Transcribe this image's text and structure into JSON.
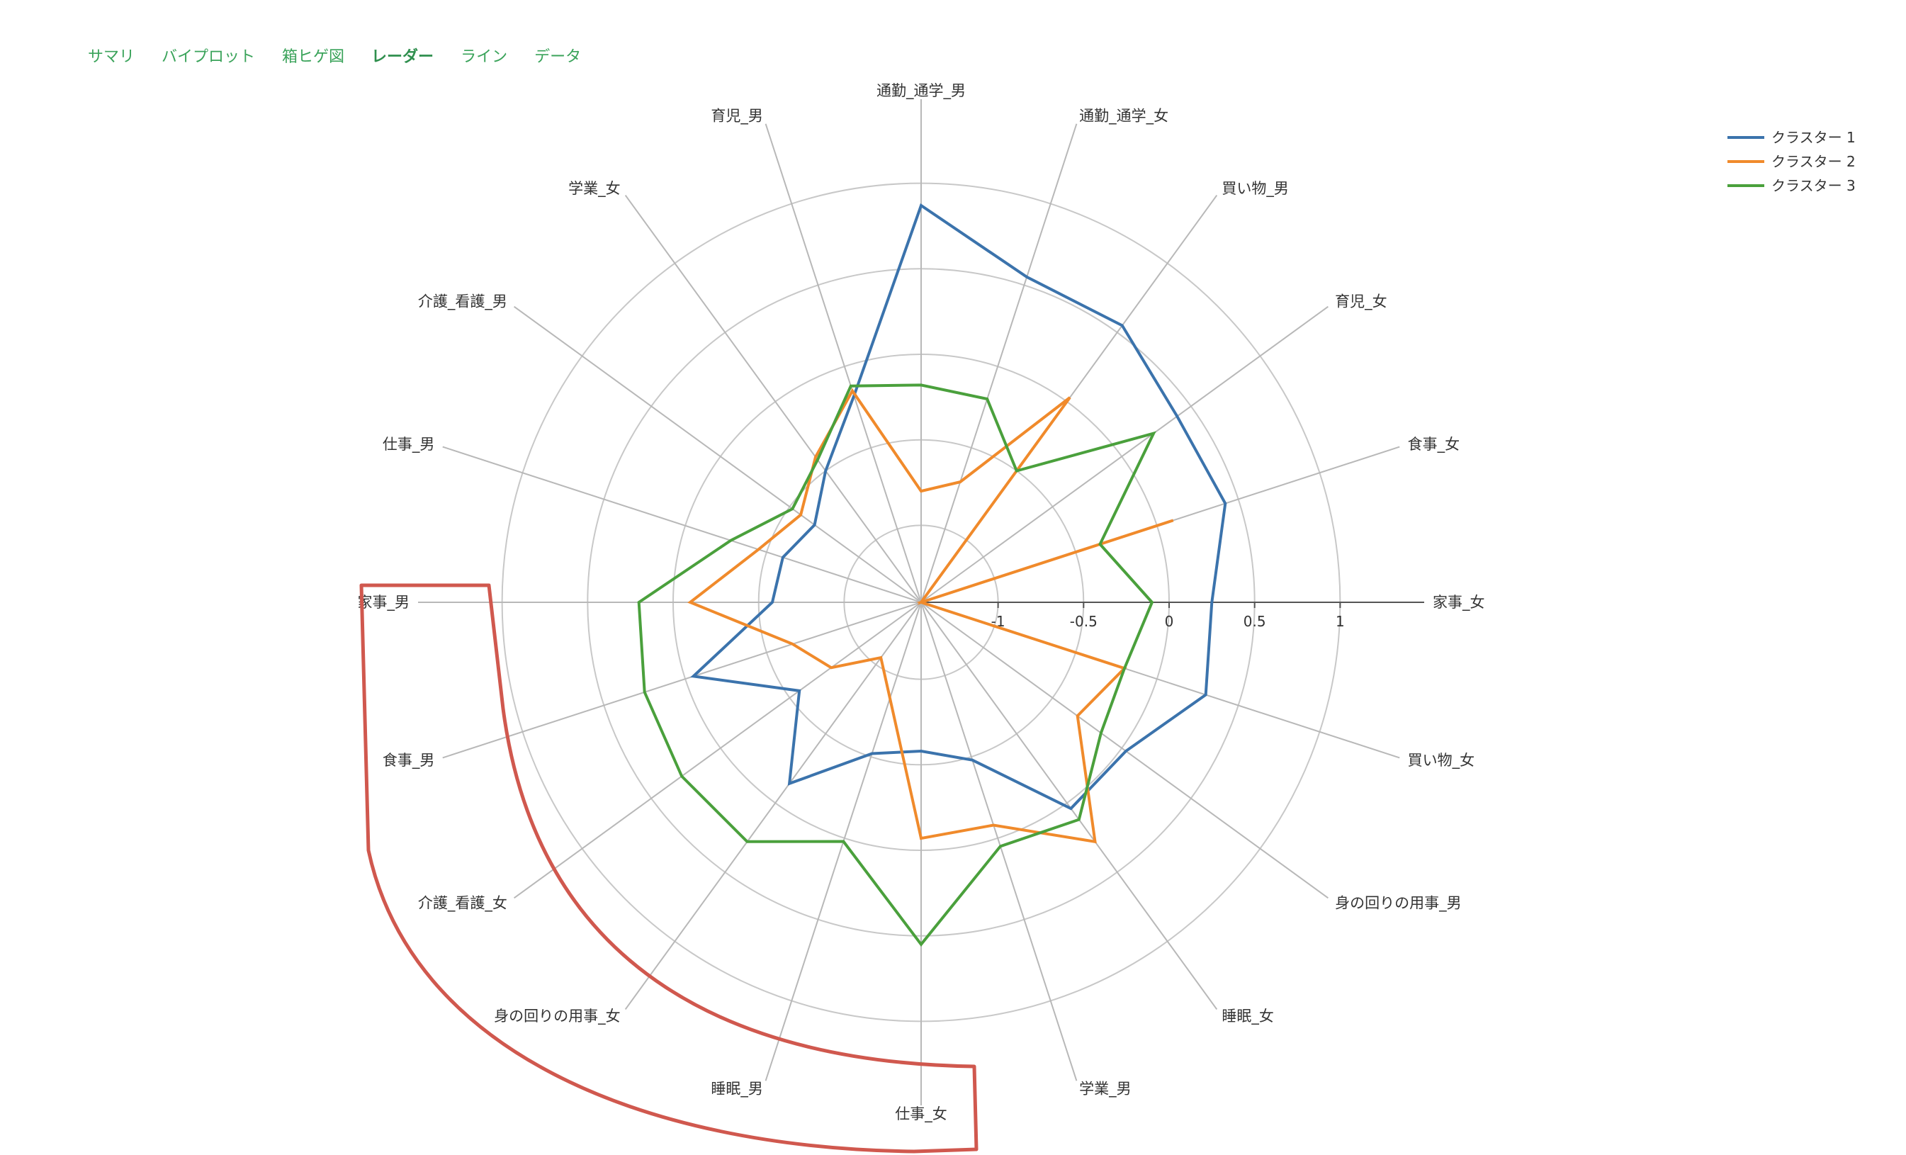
{
  "tabs": [
    {
      "label": "サマリ",
      "active": false
    },
    {
      "label": "バイプロット",
      "active": false
    },
    {
      "label": "箱ヒゲ図",
      "active": false
    },
    {
      "label": "レーダー",
      "active": true
    },
    {
      "label": "ライン",
      "active": false
    },
    {
      "label": "データ",
      "active": false
    }
  ],
  "chart_data": {
    "type": "radar",
    "title": "",
    "axes": [
      "家事_女",
      "食事_女",
      "育児_女",
      "買い物_男",
      "通勤_通学_女",
      "通勤_通学_男",
      "育児_男",
      "学業_女",
      "介護_看護_男",
      "仕事_男",
      "家事_男",
      "食事_男",
      "介護_看護_女",
      "身の回りの用事_女",
      "睡眠_男",
      "仕事_女",
      "学業_男",
      "睡眠_女",
      "身の回りの用事_男",
      "買い物_女"
    ],
    "radial_ticks": [
      -1,
      -0.5,
      0,
      0.5,
      1
    ],
    "radial_range": [
      -1.45,
      1.45
    ],
    "gridlines": true,
    "series": [
      {
        "name": "クラスター 1",
        "color": "#3b73ac",
        "values": [
          0.25,
          0.42,
          0.4,
          0.55,
          0.55,
          0.87,
          -0.18,
          -0.5,
          -0.68,
          -0.6,
          -0.58,
          -0.05,
          -0.57,
          -0.14,
          -0.52,
          -0.58,
          -0.48,
          0.04,
          0.03,
          0.3
        ]
      },
      {
        "name": "クラスター 2",
        "color": "#f08a2b",
        "values": [
          -1.45,
          0.1,
          -1.45,
          0.03,
          -0.71,
          -0.8,
          -0.15,
          -0.4,
          -0.58,
          -0.45,
          -0.1,
          -0.66,
          -0.8,
          -1.05,
          -0.86,
          -0.07,
          -0.08,
          0.28,
          -0.32,
          -0.2
        ]
      },
      {
        "name": "クラスター 3",
        "color": "#4aa03c",
        "values": [
          -0.1,
          -0.35,
          0.23,
          -0.5,
          -0.2,
          -0.18,
          -0.12,
          -0.42,
          -0.52,
          -0.28,
          0.2,
          0.25,
          0.28,
          0.28,
          0.02,
          0.55,
          0.05,
          0.12,
          -0.15,
          -0.2
        ]
      }
    ],
    "legend_placement": "top-right"
  }
}
